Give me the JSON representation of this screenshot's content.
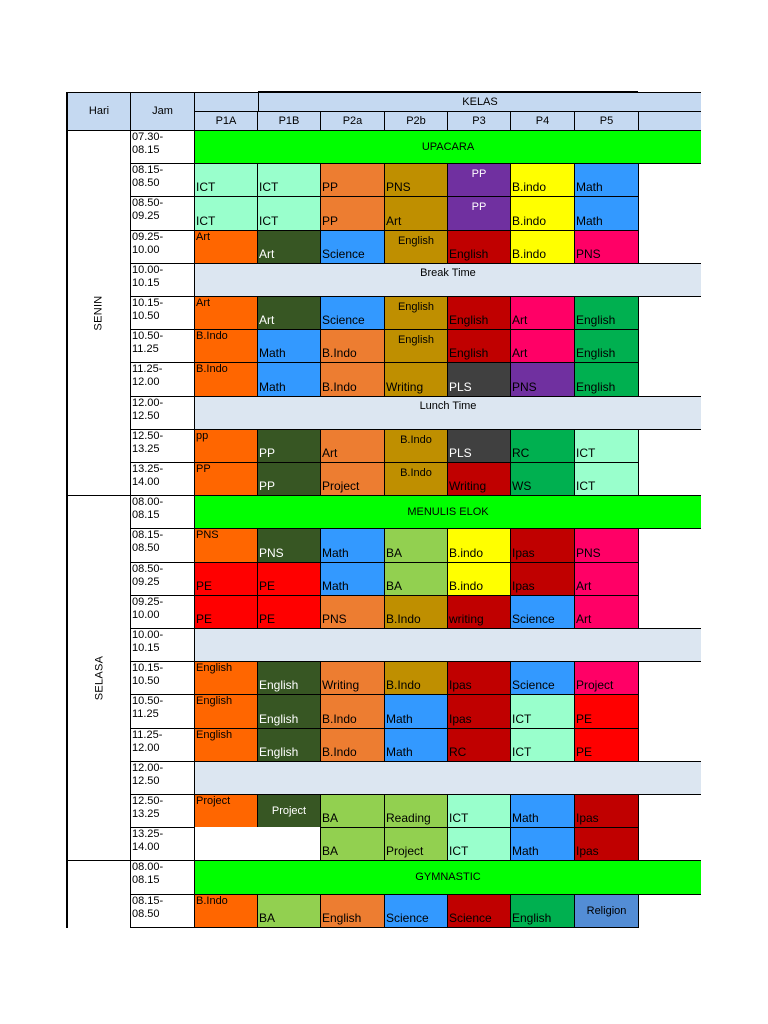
{
  "header": {
    "hari": "Hari",
    "jam": "Jam",
    "kelas": "KELAS",
    "classes": [
      "P1A",
      "P1B",
      "P2a",
      "P2b",
      "P3",
      "P4",
      "P5"
    ]
  },
  "colors": {
    "header": "#c5d9f1",
    "banner_green": "#00ff00",
    "break_blue": "#dce6f1",
    "mint": "#99ffcc",
    "orange": "#ff6600",
    "dark_olive": "#375623",
    "light_orange": "#ed7d31",
    "gold": "#bf8f00",
    "dark_red": "#c00000",
    "purple": "#7030a0",
    "yellow": "#ffff00",
    "blue": "#3399ff",
    "pink": "#ff0066",
    "green": "#00b050",
    "dark_gray": "#404040",
    "red": "#ff0000",
    "light_green": "#92d050",
    "steel_blue": "#538dd5",
    "white": "#ffffff"
  },
  "days": [
    {
      "name": "SENIN",
      "rows": [
        {
          "time": "07.30-\n08.15",
          "banner": "UPACARA",
          "banner_color": "banner_green"
        },
        {
          "time": "08.15-\n08.50",
          "cells": [
            {
              "text": "ICT",
              "color": "mint"
            },
            {
              "text": "ICT",
              "color": "mint"
            },
            {
              "text": "PP",
              "color": "light_orange"
            },
            {
              "text": "PNS",
              "color": "gold"
            },
            {
              "text": "PP",
              "color": "purple",
              "align": "tc",
              "fg": "#ffffff"
            },
            {
              "text": "B.indo",
              "color": "yellow"
            },
            {
              "text": "Math",
              "color": "blue"
            }
          ]
        },
        {
          "time": "08.50-\n09.25",
          "cells": [
            {
              "text": "ICT",
              "color": "mint"
            },
            {
              "text": "ICT",
              "color": "mint"
            },
            {
              "text": "PP",
              "color": "light_orange"
            },
            {
              "text": "Art",
              "color": "gold"
            },
            {
              "text": "PP",
              "color": "purple",
              "align": "tc",
              "fg": "#ffffff"
            },
            {
              "text": "B.indo",
              "color": "yellow"
            },
            {
              "text": "Math",
              "color": "blue"
            }
          ]
        },
        {
          "time": "09.25-\n10.00",
          "cells": [
            {
              "text": "Art",
              "color": "orange",
              "align": "tl"
            },
            {
              "text": "Art",
              "color": "dark_olive",
              "fg": "#ffffff"
            },
            {
              "text": "Science",
              "color": "blue"
            },
            {
              "text": "English",
              "color": "gold",
              "align": "tc"
            },
            {
              "text": "English",
              "color": "dark_red"
            },
            {
              "text": "B.indo",
              "color": "yellow"
            },
            {
              "text": "PNS",
              "color": "pink"
            }
          ]
        },
        {
          "time": "10.00-\n10.15",
          "banner": "Break Time",
          "banner_color": "break_blue",
          "banner_top": true
        },
        {
          "time": "10.15-\n10.50",
          "cells": [
            {
              "text": "Art",
              "color": "orange",
              "align": "tl"
            },
            {
              "text": "Art",
              "color": "dark_olive",
              "fg": "#ffffff"
            },
            {
              "text": "Science",
              "color": "blue"
            },
            {
              "text": "English",
              "color": "gold",
              "align": "tc"
            },
            {
              "text": "English",
              "color": "dark_red"
            },
            {
              "text": "Art",
              "color": "pink"
            },
            {
              "text": "English",
              "color": "green"
            }
          ]
        },
        {
          "time": "10.50-\n11.25",
          "cells": [
            {
              "text": "B.Indo",
              "color": "orange",
              "align": "tl"
            },
            {
              "text": "Math",
              "color": "blue"
            },
            {
              "text": "B.Indo",
              "color": "light_orange"
            },
            {
              "text": "English",
              "color": "gold",
              "align": "tc"
            },
            {
              "text": "English",
              "color": "dark_red"
            },
            {
              "text": "Art",
              "color": "pink"
            },
            {
              "text": "English",
              "color": "green"
            }
          ]
        },
        {
          "time": "11.25-\n12.00",
          "cells": [
            {
              "text": "B.Indo",
              "color": "orange",
              "align": "tl"
            },
            {
              "text": "Math",
              "color": "blue"
            },
            {
              "text": "B.Indo",
              "color": "light_orange"
            },
            {
              "text": "Writing",
              "color": "gold"
            },
            {
              "text": "PLS",
              "color": "dark_gray",
              "fg": "#ffffff"
            },
            {
              "text": "PNS",
              "color": "purple"
            },
            {
              "text": "English",
              "color": "green"
            }
          ]
        },
        {
          "time": "12.00-\n12.50",
          "banner": "Lunch Time",
          "banner_color": "break_blue",
          "banner_top": true
        },
        {
          "time": "12.50-\n13.25",
          "cells": [
            {
              "text": "pp",
              "color": "orange",
              "align": "tl"
            },
            {
              "text": "PP",
              "color": "dark_olive",
              "fg": "#ffffff"
            },
            {
              "text": "Art",
              "color": "light_orange"
            },
            {
              "text": "B.Indo",
              "color": "gold",
              "align": "tc"
            },
            {
              "text": "PLS",
              "color": "dark_gray",
              "fg": "#ffffff"
            },
            {
              "text": "RC",
              "color": "green"
            },
            {
              "text": "ICT",
              "color": "mint"
            }
          ]
        },
        {
          "time": "13.25-\n14.00",
          "cells": [
            {
              "text": "PP",
              "color": "orange",
              "align": "tl"
            },
            {
              "text": "PP",
              "color": "dark_olive",
              "fg": "#ffffff"
            },
            {
              "text": "Project",
              "color": "light_orange"
            },
            {
              "text": "B.Indo",
              "color": "gold",
              "align": "tc"
            },
            {
              "text": "Writing",
              "color": "dark_red"
            },
            {
              "text": "WS",
              "color": "green"
            },
            {
              "text": "ICT",
              "color": "mint"
            }
          ]
        }
      ]
    },
    {
      "name": "SELASA",
      "rows": [
        {
          "time": "08.00-\n08.15",
          "banner": "MENULIS ELOK",
          "banner_color": "banner_green"
        },
        {
          "time": "08.15-\n08.50",
          "cells": [
            {
              "text": "PNS",
              "color": "orange",
              "align": "tl"
            },
            {
              "text": "PNS",
              "color": "dark_olive",
              "fg": "#ffffff"
            },
            {
              "text": "Math",
              "color": "blue"
            },
            {
              "text": "BA",
              "color": "light_green"
            },
            {
              "text": "B.indo",
              "color": "yellow"
            },
            {
              "text": "Ipas",
              "color": "dark_red"
            },
            {
              "text": "PNS",
              "color": "pink"
            }
          ]
        },
        {
          "time": "08.50-\n09.25",
          "cells": [
            {
              "text": "PE",
              "color": "red"
            },
            {
              "text": "PE",
              "color": "red"
            },
            {
              "text": "Math",
              "color": "blue"
            },
            {
              "text": "BA",
              "color": "light_green"
            },
            {
              "text": "B.indo",
              "color": "yellow"
            },
            {
              "text": "Ipas",
              "color": "dark_red"
            },
            {
              "text": "Art",
              "color": "pink"
            }
          ]
        },
        {
          "time": "09.25-\n10.00",
          "cells": [
            {
              "text": "PE",
              "color": "red"
            },
            {
              "text": "PE",
              "color": "red"
            },
            {
              "text": "PNS",
              "color": "light_orange"
            },
            {
              "text": "B.Indo",
              "color": "gold"
            },
            {
              "text": "writing",
              "color": "dark_red"
            },
            {
              "text": "Science",
              "color": "blue"
            },
            {
              "text": "Art",
              "color": "pink"
            }
          ]
        },
        {
          "time": "10.00-\n10.15",
          "banner": "",
          "banner_color": "break_blue"
        },
        {
          "time": "10.15-\n10.50",
          "cells": [
            {
              "text": "English",
              "color": "orange",
              "align": "tl"
            },
            {
              "text": "English",
              "color": "dark_olive",
              "fg": "#ffffff"
            },
            {
              "text": "Writing",
              "color": "light_orange"
            },
            {
              "text": "B.Indo",
              "color": "gold"
            },
            {
              "text": "Ipas",
              "color": "dark_red"
            },
            {
              "text": "Science",
              "color": "blue"
            },
            {
              "text": "Project",
              "color": "pink"
            }
          ]
        },
        {
          "time": "10.50-\n11.25",
          "cells": [
            {
              "text": "English",
              "color": "orange",
              "align": "tl"
            },
            {
              "text": "English",
              "color": "dark_olive",
              "fg": "#ffffff"
            },
            {
              "text": "B.Indo",
              "color": "light_orange"
            },
            {
              "text": "Math",
              "color": "blue"
            },
            {
              "text": "Ipas",
              "color": "dark_red"
            },
            {
              "text": "ICT",
              "color": "mint"
            },
            {
              "text": "PE",
              "color": "red"
            }
          ]
        },
        {
          "time": "11.25-\n12.00",
          "cells": [
            {
              "text": "English",
              "color": "orange",
              "align": "tl"
            },
            {
              "text": "English",
              "color": "dark_olive",
              "fg": "#ffffff"
            },
            {
              "text": "B.Indo",
              "color": "light_orange"
            },
            {
              "text": "Math",
              "color": "blue"
            },
            {
              "text": "RC",
              "color": "dark_red"
            },
            {
              "text": "ICT",
              "color": "mint"
            },
            {
              "text": "PE",
              "color": "red"
            }
          ]
        },
        {
          "time": "12.00-\n12.50",
          "banner": "",
          "banner_color": "break_blue"
        },
        {
          "time": "12.50-\n13.25",
          "cells": [
            {
              "text": "Project",
              "color": "orange",
              "align": "tl"
            },
            {
              "text": "Project",
              "color": "dark_olive",
              "align": "cc",
              "fg": "#ffffff"
            },
            {
              "text": "BA",
              "color": "light_green"
            },
            {
              "text": "Reading",
              "color": "light_green"
            },
            {
              "text": "ICT",
              "color": "mint"
            },
            {
              "text": "Math",
              "color": "blue"
            },
            {
              "text": "Ipas",
              "color": "dark_red"
            }
          ]
        },
        {
          "time": "13.25-\n14.00",
          "cells": [
            {
              "text": "",
              "color": "white"
            },
            {
              "text": "",
              "color": "white"
            },
            {
              "text": "BA",
              "color": "light_green"
            },
            {
              "text": "Project",
              "color": "light_green"
            },
            {
              "text": "ICT",
              "color": "mint"
            },
            {
              "text": "Math",
              "color": "blue"
            },
            {
              "text": "Ipas",
              "color": "dark_red"
            }
          ]
        }
      ]
    },
    {
      "name": "",
      "rows": [
        {
          "time": "08.00-\n08.15",
          "banner": "GYMNASTIC",
          "banner_color": "banner_green"
        },
        {
          "time": "08.15-\n08.50",
          "cells": [
            {
              "text": "B.Indo",
              "color": "orange",
              "align": "tl"
            },
            {
              "text": "BA",
              "color": "light_green"
            },
            {
              "text": "English",
              "color": "light_orange"
            },
            {
              "text": "Science",
              "color": "blue"
            },
            {
              "text": "Science",
              "color": "dark_red"
            },
            {
              "text": "English",
              "color": "green"
            },
            {
              "text": "Religion",
              "color": "steel_blue",
              "align": "cc"
            }
          ]
        }
      ]
    }
  ]
}
